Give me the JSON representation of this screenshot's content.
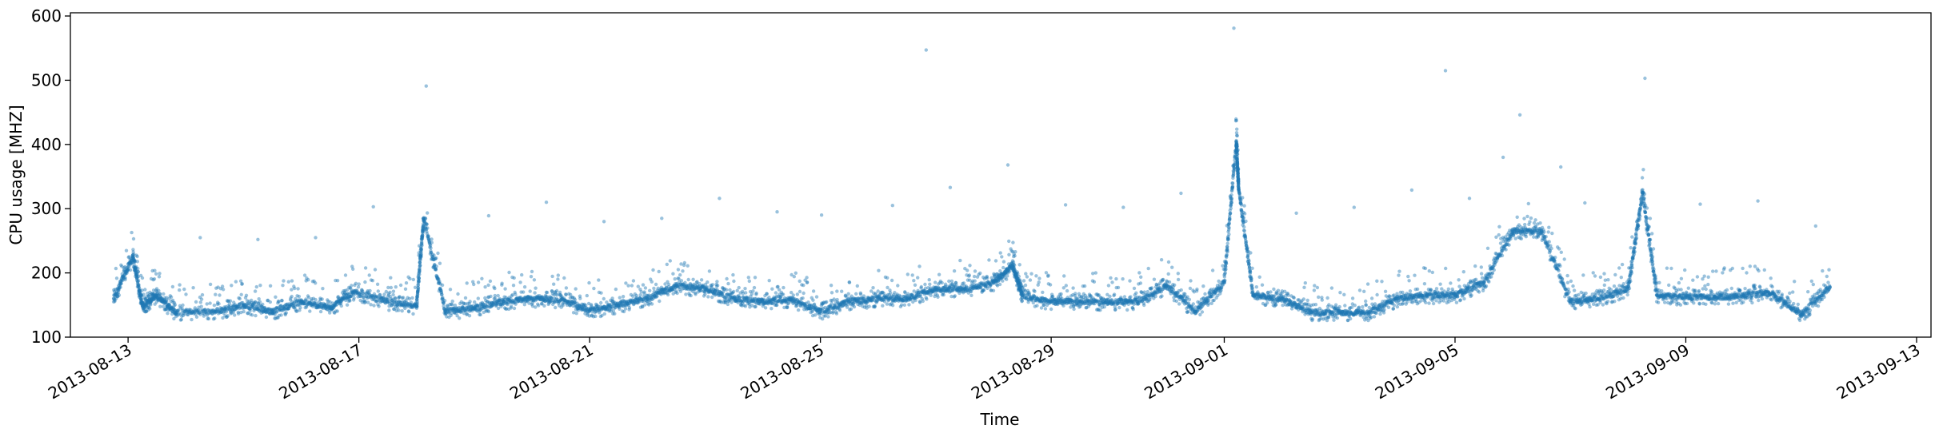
{
  "chart_data": {
    "type": "scatter",
    "title": "",
    "xlabel": "Time",
    "ylabel": "CPU usage [MHZ]",
    "x_axis_type": "date",
    "xlim": [
      "2013-08-12T00:00",
      "2013-09-13T06:00"
    ],
    "ylim": [
      100,
      605
    ],
    "x_tick_labels": [
      "2013-08-13",
      "2013-08-17",
      "2013-08-21",
      "2013-08-25",
      "2013-08-29",
      "2013-09-01",
      "2013-09-05",
      "2013-09-09",
      "2013-09-13"
    ],
    "y_tick_labels": [
      "100",
      "200",
      "300",
      "400",
      "500",
      "600"
    ],
    "grid": false,
    "legend": "none",
    "series": [
      {
        "color": "#1f77b4",
        "points": [
          [
            "2013-08-12T18:00",
            160
          ],
          [
            "2013-08-13T02:00",
            225
          ],
          [
            "2013-08-13T06:00",
            148
          ],
          [
            "2013-08-13T12:00",
            165
          ],
          [
            "2013-08-13T20:00",
            138
          ],
          [
            "2013-08-14T06:00",
            255
          ],
          [
            "2013-08-14T12:00",
            140
          ],
          [
            "2013-08-15T00:00",
            150
          ],
          [
            "2013-08-15T06:00",
            252
          ],
          [
            "2013-08-15T12:00",
            140
          ],
          [
            "2013-08-16T00:00",
            155
          ],
          [
            "2013-08-16T06:00",
            255
          ],
          [
            "2013-08-16T12:00",
            145
          ],
          [
            "2013-08-16T22:00",
            170
          ],
          [
            "2013-08-17T06:00",
            303
          ],
          [
            "2013-08-17T12:00",
            155
          ],
          [
            "2013-08-18T00:00",
            148
          ],
          [
            "2013-08-18T03:00",
            284
          ],
          [
            "2013-08-18T04:00",
            491
          ],
          [
            "2013-08-18T12:00",
            140
          ],
          [
            "2013-08-19T00:00",
            145
          ],
          [
            "2013-08-19T06:00",
            289
          ],
          [
            "2013-08-19T12:00",
            155
          ],
          [
            "2013-08-20T00:00",
            160
          ],
          [
            "2013-08-20T06:00",
            310
          ],
          [
            "2013-08-20T12:00",
            158
          ],
          [
            "2013-08-21T00:00",
            142
          ],
          [
            "2013-08-21T06:00",
            280
          ],
          [
            "2013-08-21T12:00",
            150
          ],
          [
            "2013-08-22T00:00",
            160
          ],
          [
            "2013-08-22T06:00",
            285
          ],
          [
            "2013-08-22T12:00",
            180
          ],
          [
            "2013-08-23T00:00",
            175
          ],
          [
            "2013-08-23T06:00",
            316
          ],
          [
            "2013-08-23T12:00",
            160
          ],
          [
            "2013-08-24T00:00",
            155
          ],
          [
            "2013-08-24T06:00",
            295
          ],
          [
            "2013-08-24T12:00",
            158
          ],
          [
            "2013-08-25T00:00",
            140
          ],
          [
            "2013-08-25T00:30",
            290
          ],
          [
            "2013-08-25T12:00",
            155
          ],
          [
            "2013-08-26T00:00",
            160
          ],
          [
            "2013-08-26T06:00",
            305
          ],
          [
            "2013-08-26T12:00",
            160
          ],
          [
            "2013-08-26T20:00",
            547
          ],
          [
            "2013-08-27T00:00",
            175
          ],
          [
            "2013-08-27T06:00",
            333
          ],
          [
            "2013-08-27T12:00",
            175
          ],
          [
            "2013-08-28T00:00",
            185
          ],
          [
            "2013-08-28T06:00",
            368
          ],
          [
            "2013-08-28T08:00",
            210
          ],
          [
            "2013-08-28T12:00",
            165
          ],
          [
            "2013-08-29T00:00",
            155
          ],
          [
            "2013-08-29T06:00",
            306
          ],
          [
            "2013-08-29T12:00",
            155
          ],
          [
            "2013-08-30T00:00",
            155
          ],
          [
            "2013-08-30T06:00",
            302
          ],
          [
            "2013-08-30T12:00",
            155
          ],
          [
            "2013-08-31T00:00",
            180
          ],
          [
            "2013-08-31T06:00",
            324
          ],
          [
            "2013-08-31T12:00",
            140
          ],
          [
            "2013-09-01T00:00",
            185
          ],
          [
            "2013-09-01T04:00",
            581
          ],
          [
            "2013-09-01T05:00",
            404
          ],
          [
            "2013-09-01T06:00",
            330
          ],
          [
            "2013-09-01T12:00",
            165
          ],
          [
            "2013-09-02T00:00",
            160
          ],
          [
            "2013-09-02T06:00",
            293
          ],
          [
            "2013-09-02T12:00",
            138
          ],
          [
            "2013-09-03T00:00",
            138
          ],
          [
            "2013-09-03T06:00",
            302
          ],
          [
            "2013-09-03T12:00",
            138
          ],
          [
            "2013-09-04T00:00",
            160
          ],
          [
            "2013-09-04T06:00",
            329
          ],
          [
            "2013-09-04T12:00",
            165
          ],
          [
            "2013-09-04T20:00",
            515
          ],
          [
            "2013-09-05T00:00",
            165
          ],
          [
            "2013-09-05T06:00",
            316
          ],
          [
            "2013-09-05T12:00",
            185
          ],
          [
            "2013-09-05T20:00",
            380
          ],
          [
            "2013-09-06T00:00",
            265
          ],
          [
            "2013-09-06T03:00",
            446
          ],
          [
            "2013-09-06T12:00",
            265
          ],
          [
            "2013-09-06T20:00",
            365
          ],
          [
            "2013-09-07T00:00",
            155
          ],
          [
            "2013-09-07T06:00",
            309
          ],
          [
            "2013-09-07T12:00",
            160
          ],
          [
            "2013-09-08T00:00",
            175
          ],
          [
            "2013-09-08T06:00",
            325
          ],
          [
            "2013-09-08T07:00",
            503
          ],
          [
            "2013-09-08T12:00",
            165
          ],
          [
            "2013-09-09T00:00",
            162
          ],
          [
            "2013-09-09T06:00",
            307
          ],
          [
            "2013-09-09T12:00",
            162
          ],
          [
            "2013-09-10T00:00",
            165
          ],
          [
            "2013-09-10T06:00",
            312
          ],
          [
            "2013-09-10T12:00",
            168
          ],
          [
            "2013-09-11T00:00",
            135
          ],
          [
            "2013-09-11T06:00",
            273
          ],
          [
            "2013-09-11T12:00",
            178
          ]
        ]
      }
    ]
  }
}
